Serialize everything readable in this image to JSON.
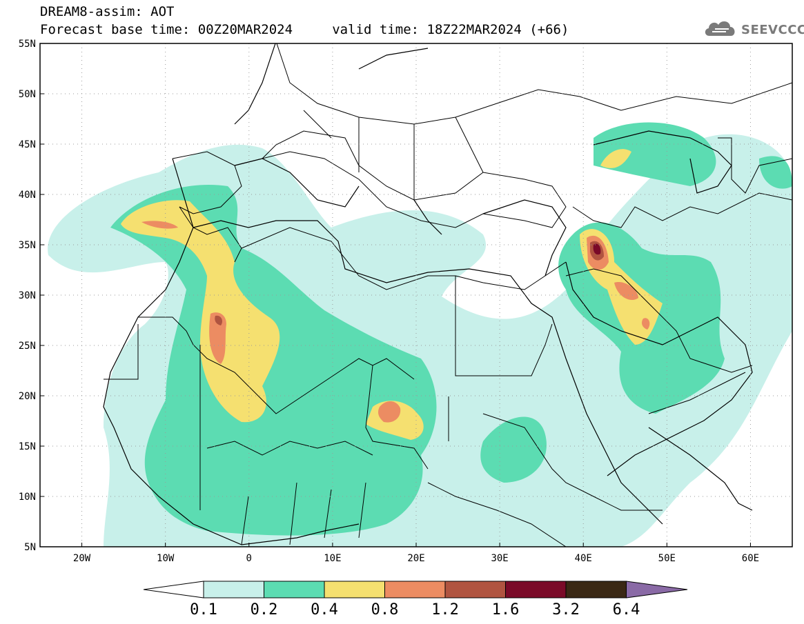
{
  "title": {
    "line1": "DREAM8-assim: AOT",
    "line2": "Forecast base time: 00Z20MAR2024     valid time: 18Z22MAR2024 (+66)"
  },
  "brand": {
    "name": "SEEVCCC",
    "icon": "cloud-logo-icon"
  },
  "map": {
    "lat_range": [
      5,
      55
    ],
    "lon_range": [
      -25,
      65
    ],
    "grid": "dotted",
    "y_ticks": [
      "55N",
      "50N",
      "45N",
      "40N",
      "35N",
      "30N",
      "25N",
      "20N",
      "15N",
      "10N",
      "5N"
    ],
    "x_ticks": [
      "20W",
      "10W",
      "0",
      "10E",
      "20E",
      "30E",
      "40E",
      "50E",
      "60E"
    ],
    "x_tick_values": [
      -20,
      -10,
      0,
      10,
      20,
      30,
      40,
      50,
      60
    ],
    "y_tick_values": [
      55,
      50,
      45,
      40,
      35,
      30,
      25,
      20,
      15,
      10,
      5
    ]
  },
  "colorbar": {
    "labels": [
      "0.1",
      "0.2",
      "0.4",
      "0.8",
      "1.2",
      "1.6",
      "3.2",
      "6.4"
    ],
    "colors": [
      "#ffffff",
      "#c8f0ea",
      "#5cdcb2",
      "#f5e070",
      "#ec8c62",
      "#b05440",
      "#7a0a28",
      "#3a2814",
      "#8a6aa6"
    ]
  }
}
